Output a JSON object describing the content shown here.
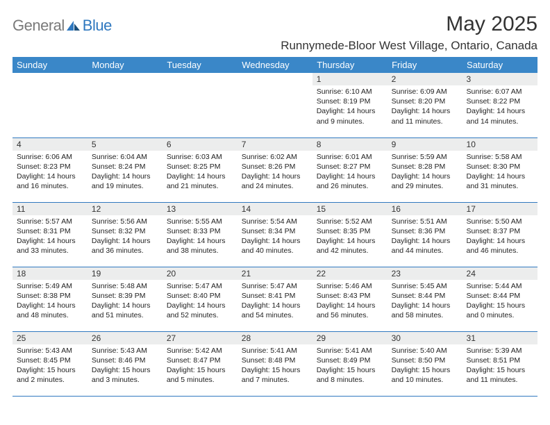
{
  "logo": {
    "general": "General",
    "blue": "Blue"
  },
  "title": "May 2025",
  "location": "Runnymede-Bloor West Village, Ontario, Canada",
  "colors": {
    "header_bg": "#3a87c8",
    "border": "#2f78bf",
    "daynum_bg": "#eceded",
    "logo_gray": "#7a7a7a",
    "logo_blue": "#2f78bf"
  },
  "day_headers": [
    "Sunday",
    "Monday",
    "Tuesday",
    "Wednesday",
    "Thursday",
    "Friday",
    "Saturday"
  ],
  "weeks": [
    [
      {
        "n": "",
        "sr": "",
        "ss": "",
        "dl": ""
      },
      {
        "n": "",
        "sr": "",
        "ss": "",
        "dl": ""
      },
      {
        "n": "",
        "sr": "",
        "ss": "",
        "dl": ""
      },
      {
        "n": "",
        "sr": "",
        "ss": "",
        "dl": ""
      },
      {
        "n": "1",
        "sr": "Sunrise: 6:10 AM",
        "ss": "Sunset: 8:19 PM",
        "dl": "Daylight: 14 hours and 9 minutes."
      },
      {
        "n": "2",
        "sr": "Sunrise: 6:09 AM",
        "ss": "Sunset: 8:20 PM",
        "dl": "Daylight: 14 hours and 11 minutes."
      },
      {
        "n": "3",
        "sr": "Sunrise: 6:07 AM",
        "ss": "Sunset: 8:22 PM",
        "dl": "Daylight: 14 hours and 14 minutes."
      }
    ],
    [
      {
        "n": "4",
        "sr": "Sunrise: 6:06 AM",
        "ss": "Sunset: 8:23 PM",
        "dl": "Daylight: 14 hours and 16 minutes."
      },
      {
        "n": "5",
        "sr": "Sunrise: 6:04 AM",
        "ss": "Sunset: 8:24 PM",
        "dl": "Daylight: 14 hours and 19 minutes."
      },
      {
        "n": "6",
        "sr": "Sunrise: 6:03 AM",
        "ss": "Sunset: 8:25 PM",
        "dl": "Daylight: 14 hours and 21 minutes."
      },
      {
        "n": "7",
        "sr": "Sunrise: 6:02 AM",
        "ss": "Sunset: 8:26 PM",
        "dl": "Daylight: 14 hours and 24 minutes."
      },
      {
        "n": "8",
        "sr": "Sunrise: 6:01 AM",
        "ss": "Sunset: 8:27 PM",
        "dl": "Daylight: 14 hours and 26 minutes."
      },
      {
        "n": "9",
        "sr": "Sunrise: 5:59 AM",
        "ss": "Sunset: 8:28 PM",
        "dl": "Daylight: 14 hours and 29 minutes."
      },
      {
        "n": "10",
        "sr": "Sunrise: 5:58 AM",
        "ss": "Sunset: 8:30 PM",
        "dl": "Daylight: 14 hours and 31 minutes."
      }
    ],
    [
      {
        "n": "11",
        "sr": "Sunrise: 5:57 AM",
        "ss": "Sunset: 8:31 PM",
        "dl": "Daylight: 14 hours and 33 minutes."
      },
      {
        "n": "12",
        "sr": "Sunrise: 5:56 AM",
        "ss": "Sunset: 8:32 PM",
        "dl": "Daylight: 14 hours and 36 minutes."
      },
      {
        "n": "13",
        "sr": "Sunrise: 5:55 AM",
        "ss": "Sunset: 8:33 PM",
        "dl": "Daylight: 14 hours and 38 minutes."
      },
      {
        "n": "14",
        "sr": "Sunrise: 5:54 AM",
        "ss": "Sunset: 8:34 PM",
        "dl": "Daylight: 14 hours and 40 minutes."
      },
      {
        "n": "15",
        "sr": "Sunrise: 5:52 AM",
        "ss": "Sunset: 8:35 PM",
        "dl": "Daylight: 14 hours and 42 minutes."
      },
      {
        "n": "16",
        "sr": "Sunrise: 5:51 AM",
        "ss": "Sunset: 8:36 PM",
        "dl": "Daylight: 14 hours and 44 minutes."
      },
      {
        "n": "17",
        "sr": "Sunrise: 5:50 AM",
        "ss": "Sunset: 8:37 PM",
        "dl": "Daylight: 14 hours and 46 minutes."
      }
    ],
    [
      {
        "n": "18",
        "sr": "Sunrise: 5:49 AM",
        "ss": "Sunset: 8:38 PM",
        "dl": "Daylight: 14 hours and 48 minutes."
      },
      {
        "n": "19",
        "sr": "Sunrise: 5:48 AM",
        "ss": "Sunset: 8:39 PM",
        "dl": "Daylight: 14 hours and 51 minutes."
      },
      {
        "n": "20",
        "sr": "Sunrise: 5:47 AM",
        "ss": "Sunset: 8:40 PM",
        "dl": "Daylight: 14 hours and 52 minutes."
      },
      {
        "n": "21",
        "sr": "Sunrise: 5:47 AM",
        "ss": "Sunset: 8:41 PM",
        "dl": "Daylight: 14 hours and 54 minutes."
      },
      {
        "n": "22",
        "sr": "Sunrise: 5:46 AM",
        "ss": "Sunset: 8:43 PM",
        "dl": "Daylight: 14 hours and 56 minutes."
      },
      {
        "n": "23",
        "sr": "Sunrise: 5:45 AM",
        "ss": "Sunset: 8:44 PM",
        "dl": "Daylight: 14 hours and 58 minutes."
      },
      {
        "n": "24",
        "sr": "Sunrise: 5:44 AM",
        "ss": "Sunset: 8:44 PM",
        "dl": "Daylight: 15 hours and 0 minutes."
      }
    ],
    [
      {
        "n": "25",
        "sr": "Sunrise: 5:43 AM",
        "ss": "Sunset: 8:45 PM",
        "dl": "Daylight: 15 hours and 2 minutes."
      },
      {
        "n": "26",
        "sr": "Sunrise: 5:43 AM",
        "ss": "Sunset: 8:46 PM",
        "dl": "Daylight: 15 hours and 3 minutes."
      },
      {
        "n": "27",
        "sr": "Sunrise: 5:42 AM",
        "ss": "Sunset: 8:47 PM",
        "dl": "Daylight: 15 hours and 5 minutes."
      },
      {
        "n": "28",
        "sr": "Sunrise: 5:41 AM",
        "ss": "Sunset: 8:48 PM",
        "dl": "Daylight: 15 hours and 7 minutes."
      },
      {
        "n": "29",
        "sr": "Sunrise: 5:41 AM",
        "ss": "Sunset: 8:49 PM",
        "dl": "Daylight: 15 hours and 8 minutes."
      },
      {
        "n": "30",
        "sr": "Sunrise: 5:40 AM",
        "ss": "Sunset: 8:50 PM",
        "dl": "Daylight: 15 hours and 10 minutes."
      },
      {
        "n": "31",
        "sr": "Sunrise: 5:39 AM",
        "ss": "Sunset: 8:51 PM",
        "dl": "Daylight: 15 hours and 11 minutes."
      }
    ]
  ]
}
